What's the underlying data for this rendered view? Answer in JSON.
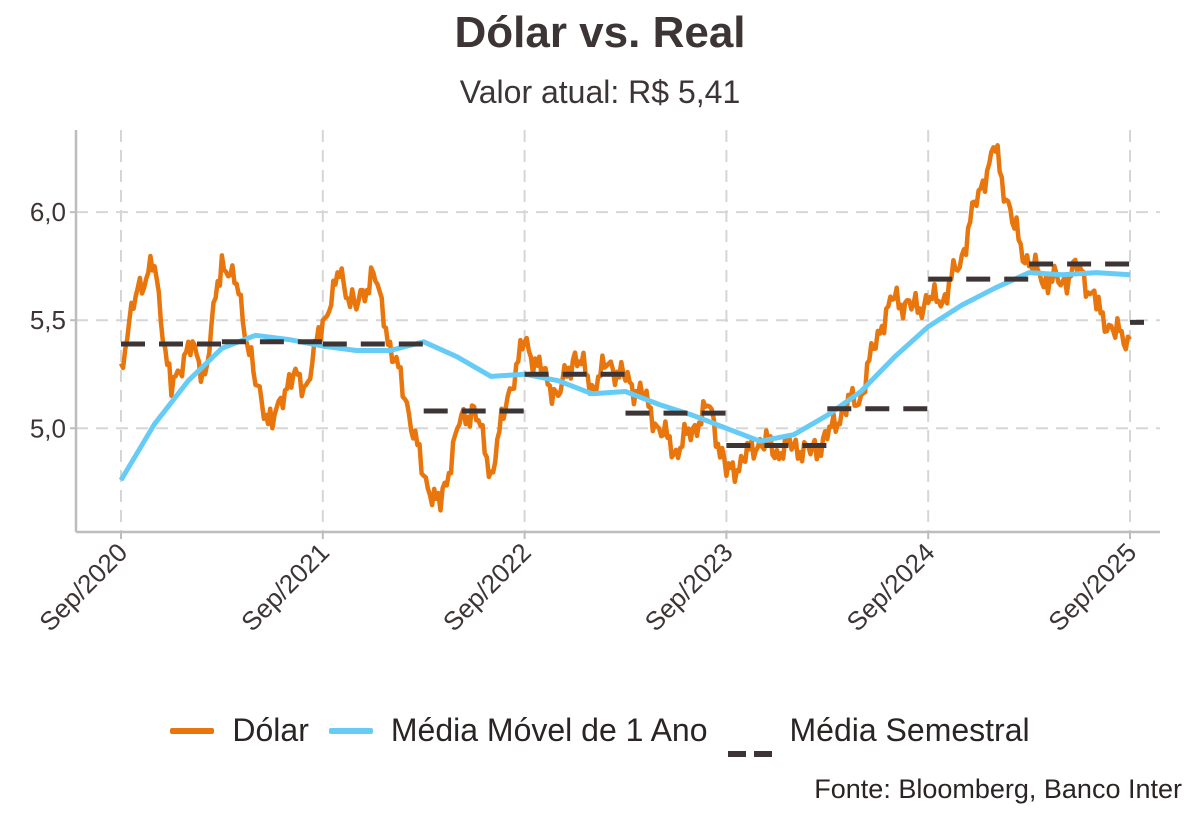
{
  "title": "Dólar vs. Real",
  "subtitle": "Valor atual: R$ 5,41",
  "source": "Fonte: Bloomberg, Banco Inter",
  "legend": [
    {
      "label": "Dólar",
      "color": "#e8760c",
      "style": "solid"
    },
    {
      "label": "Média Móvel de 1 Ano",
      "color": "#66ccf5",
      "style": "solid"
    },
    {
      "label": "Média Semestral",
      "color": "#3d3535",
      "style": "dashed"
    }
  ],
  "chart_data": {
    "type": "line",
    "title": "Dólar vs. Real",
    "xlabel": "",
    "ylabel": "",
    "x_ticks": [
      "Sep/2020",
      "Sep/2021",
      "Sep/2022",
      "Sep/2023",
      "Sep/2024",
      "Sep/2025"
    ],
    "y_ticks": [
      "5,0",
      "5,5",
      "6,0"
    ],
    "y_tick_values": [
      5.0,
      5.5,
      6.0
    ],
    "xlim": [
      "2020-09",
      "2025-09"
    ],
    "ylim": [
      4.52,
      6.38
    ],
    "grid": true,
    "legend_position": "bottom",
    "series": [
      {
        "name": "Dólar",
        "color": "#e8760c",
        "x": [
          "2020-09",
          "2020-10",
          "2020-11",
          "2020-12",
          "2021-01",
          "2021-02",
          "2021-03",
          "2021-04",
          "2021-05",
          "2021-06",
          "2021-07",
          "2021-08",
          "2021-09",
          "2021-10",
          "2021-11",
          "2021-12",
          "2022-01",
          "2022-02",
          "2022-03",
          "2022-04",
          "2022-05",
          "2022-06",
          "2022-07",
          "2022-08",
          "2022-09",
          "2022-10",
          "2022-11",
          "2022-12",
          "2023-01",
          "2023-02",
          "2023-03",
          "2023-04",
          "2023-05",
          "2023-06",
          "2023-07",
          "2023-08",
          "2023-09",
          "2023-10",
          "2023-11",
          "2023-12",
          "2024-01",
          "2024-02",
          "2024-03",
          "2024-04",
          "2024-05",
          "2024-06",
          "2024-07",
          "2024-08",
          "2024-09",
          "2024-10",
          "2024-11",
          "2024-12",
          "2025-01",
          "2025-02",
          "2025-03",
          "2025-04",
          "2025-05",
          "2025-06",
          "2025-07",
          "2025-08",
          "2025-09"
        ],
        "values": [
          5.3,
          5.65,
          5.75,
          5.15,
          5.4,
          5.25,
          5.8,
          5.62,
          5.2,
          5.0,
          5.25,
          5.2,
          5.5,
          5.7,
          5.55,
          5.72,
          5.4,
          5.12,
          4.78,
          4.62,
          5.0,
          5.1,
          4.8,
          5.15,
          5.4,
          5.25,
          5.15,
          5.35,
          5.2,
          5.3,
          5.22,
          5.15,
          5.0,
          4.9,
          5.0,
          5.1,
          4.78,
          4.85,
          4.95,
          4.9,
          4.92,
          4.88,
          4.95,
          5.1,
          5.15,
          5.45,
          5.6,
          5.55,
          5.58,
          5.62,
          5.8,
          6.1,
          6.28,
          5.95,
          5.75,
          5.7,
          5.68,
          5.75,
          5.55,
          5.45,
          5.41
        ]
      },
      {
        "name": "Média Móvel de 1 Ano",
        "color": "#66ccf5",
        "x": [
          "2020-09",
          "2020-11",
          "2021-01",
          "2021-03",
          "2021-05",
          "2021-07",
          "2021-09",
          "2021-11",
          "2022-01",
          "2022-03",
          "2022-05",
          "2022-07",
          "2022-09",
          "2022-11",
          "2023-01",
          "2023-03",
          "2023-05",
          "2023-07",
          "2023-09",
          "2023-11",
          "2024-01",
          "2024-03",
          "2024-05",
          "2024-07",
          "2024-09",
          "2024-11",
          "2025-01",
          "2025-03",
          "2025-05",
          "2025-07",
          "2025-09"
        ],
        "values": [
          4.76,
          5.02,
          5.22,
          5.37,
          5.43,
          5.41,
          5.38,
          5.36,
          5.36,
          5.4,
          5.33,
          5.24,
          5.25,
          5.22,
          5.16,
          5.17,
          5.11,
          5.06,
          5.0,
          4.94,
          4.97,
          5.06,
          5.17,
          5.33,
          5.47,
          5.57,
          5.65,
          5.72,
          5.71,
          5.72,
          5.71
        ]
      },
      {
        "name": "Média Semestral",
        "color": "#3d3535",
        "segments": [
          {
            "start": "2020-09",
            "end": "2021-03",
            "value": 5.39
          },
          {
            "start": "2021-03",
            "end": "2021-09",
            "value": 5.4
          },
          {
            "start": "2021-09",
            "end": "2022-03",
            "value": 5.39
          },
          {
            "start": "2022-03",
            "end": "2022-09",
            "value": 5.08
          },
          {
            "start": "2022-09",
            "end": "2023-03",
            "value": 5.25
          },
          {
            "start": "2023-03",
            "end": "2023-09",
            "value": 5.07
          },
          {
            "start": "2023-09",
            "end": "2024-03",
            "value": 4.92
          },
          {
            "start": "2024-03",
            "end": "2024-09",
            "value": 5.09
          },
          {
            "start": "2024-09",
            "end": "2025-03",
            "value": 5.69
          },
          {
            "start": "2025-03",
            "end": "2025-09",
            "value": 5.76
          },
          {
            "start": "2025-09",
            "end": "2025-10",
            "value": 5.49
          }
        ]
      }
    ]
  }
}
